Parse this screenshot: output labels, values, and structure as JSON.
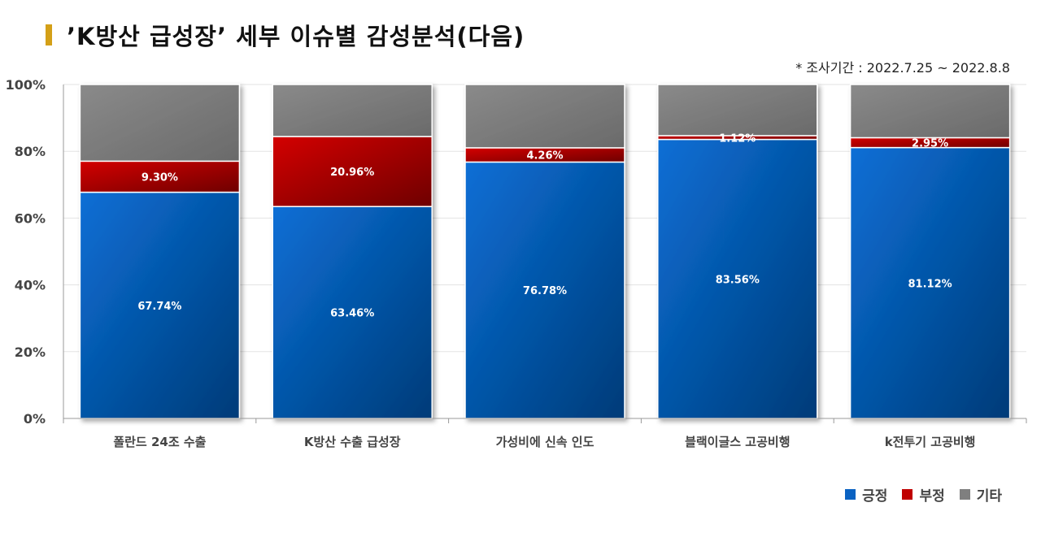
{
  "title": "’K방산 급성장’ 세부 이슈별 감성분석(다음)",
  "period_note": "* 조사기간 : 2022.7.25 ~ 2022.8.8",
  "chart_data": {
    "type": "bar",
    "stacked": true,
    "categories": [
      "폴란드 24조 수출",
      "K방산 수출 급성장",
      "가성비에 신속 인도",
      "블랙이글스 고공비행",
      "k전투기 고공비행"
    ],
    "series": [
      {
        "name": "긍정",
        "color": "#0a62c2",
        "values": [
          67.74,
          63.46,
          76.78,
          83.56,
          81.12
        ],
        "labels": [
          "67.74%",
          "63.46%",
          "76.78%",
          "83.56%",
          "81.12%"
        ]
      },
      {
        "name": "부정",
        "color": "#c00000",
        "values": [
          9.3,
          20.96,
          4.26,
          1.12,
          2.95
        ],
        "labels": [
          "9.30%",
          "20.96%",
          "4.26%",
          "1.12%",
          "2.95%"
        ]
      },
      {
        "name": "기타",
        "color": "#7f7f7f",
        "values": [
          22.96,
          15.58,
          18.96,
          15.32,
          15.93
        ],
        "labels": [
          "",
          "",
          "",
          "",
          ""
        ]
      }
    ],
    "ylim": [
      0,
      100
    ],
    "yticks": [
      "0%",
      "20%",
      "40%",
      "60%",
      "80%",
      "100%"
    ],
    "grid": true,
    "legend_position": "bottom-right"
  }
}
